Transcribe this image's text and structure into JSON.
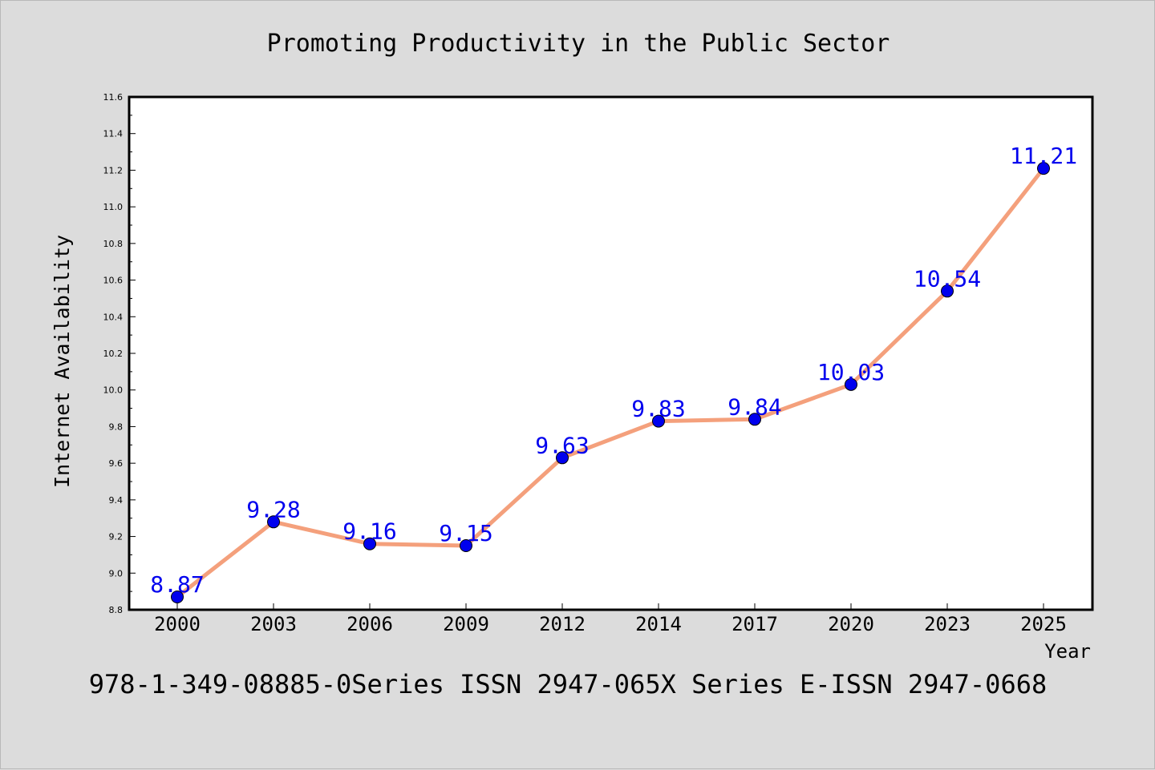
{
  "chart_data": {
    "type": "line",
    "title": "Promoting Productivity in the Public Sector",
    "xlabel": "Year",
    "ylabel": "Internet Availability",
    "categories": [
      "2000",
      "2003",
      "2006",
      "2009",
      "2012",
      "2014",
      "2017",
      "2020",
      "2023",
      "2025"
    ],
    "series": [
      {
        "values": [
          8.87,
          9.28,
          9.16,
          9.15,
          9.63,
          9.83,
          9.84,
          10.03,
          10.54,
          11.21
        ]
      }
    ],
    "data_labels": [
      "8.87",
      "9.28",
      "9.16",
      "9.15",
      "9.63",
      "9.83",
      "9.84",
      "10.03",
      "10.54",
      "11.21"
    ],
    "ylim": [
      8.8,
      11.6
    ],
    "yticks": [
      "8.8",
      "9.0",
      "9.2",
      "9.4",
      "9.6",
      "9.8",
      "10.0",
      "10.2",
      "10.4",
      "10.6",
      "10.8",
      "11.0",
      "11.2",
      "11.4",
      "11.6"
    ],
    "grid": false,
    "legend": "none",
    "colors": {
      "line": "#f4a07c",
      "marker": "#0000ee",
      "label": "#0000ee",
      "plot_bg": "#ffffff",
      "page_bg": "#dcdcdc"
    }
  },
  "footer": "978-1-349-08885-0Series ISSN 2947-065X Series E-ISSN 2947-0668"
}
